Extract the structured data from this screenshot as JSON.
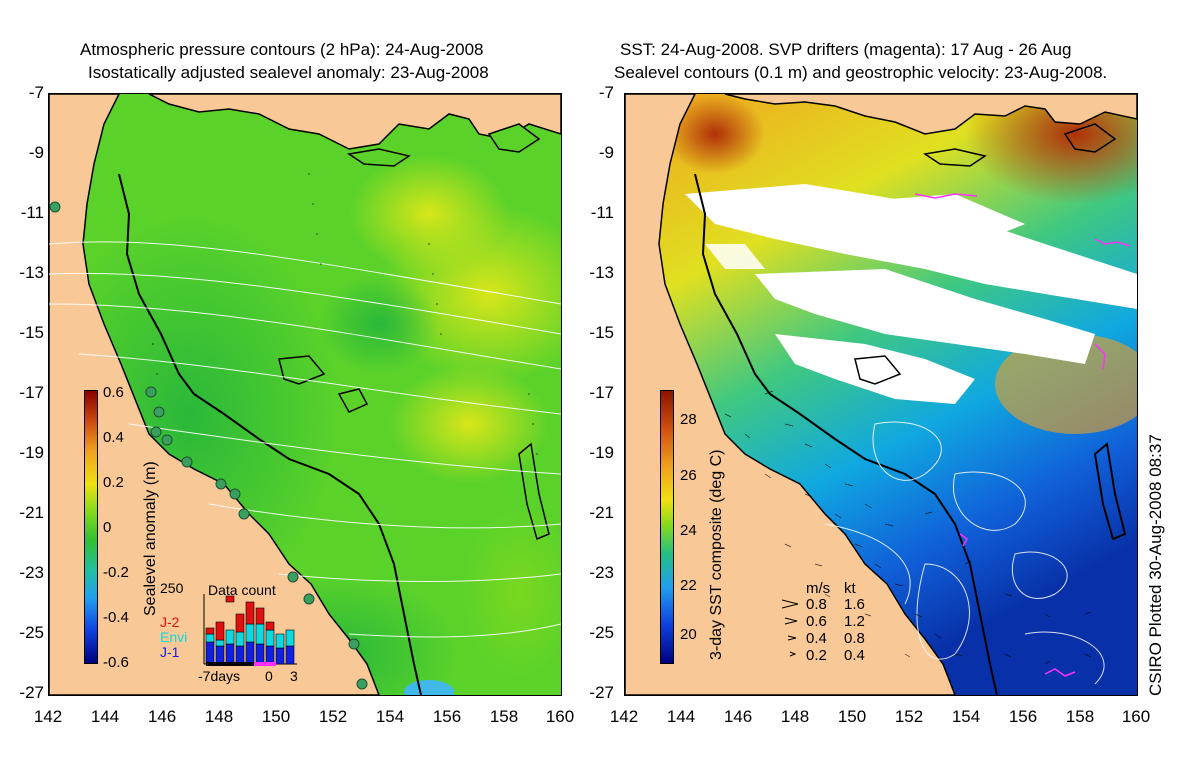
{
  "left_panel": {
    "title_line1": "Atmospheric pressure contours (2 hPa): 24-Aug-2008",
    "title_line2": "Isostatically adjusted sealevel anomaly: 23-Aug-2008",
    "colorbar": {
      "label": "Sealevel anomaly (m)",
      "ticks": [
        "0.6",
        "0.4",
        "0.2",
        "0",
        "-0.2",
        "-0.4",
        "-0.6"
      ]
    },
    "inset": {
      "title": "Data count",
      "ymax": "250",
      "series": [
        {
          "name": "J-2",
          "color": "#e01010"
        },
        {
          "name": "Envi",
          "color": "#10d8e0"
        },
        {
          "name": "J-1",
          "color": "#1020e0"
        }
      ],
      "xlabels": [
        "-7days",
        "0",
        "3"
      ]
    }
  },
  "right_panel": {
    "title_line1": "SST: 24-Aug-2008. SVP drifters (magenta): 17 Aug - 26 Aug",
    "title_line2": "Sealevel contours (0.1 m) and geostrophic velocity: 23-Aug-2008.",
    "colorbar": {
      "label": "3-day SST composite (deg C)",
      "ticks": [
        "28",
        "26",
        "24",
        "22",
        "20"
      ]
    },
    "velocity_key": {
      "header_ms": "m/s",
      "header_kt": "kt",
      "rows": [
        {
          "ms": "0.8",
          "kt": "1.6"
        },
        {
          "ms": "0.6",
          "kt": "1.2"
        },
        {
          "ms": "0.4",
          "kt": "0.8"
        },
        {
          "ms": "0.2",
          "kt": "0.4"
        }
      ]
    },
    "credit": "CSIRO Plotted 30-Aug-2008 08:37"
  },
  "axes": {
    "lat_ticks": [
      "-7",
      "-9",
      "-11",
      "-13",
      "-15",
      "-17",
      "-19",
      "-21",
      "-23",
      "-25",
      "-27"
    ],
    "lon_ticks": [
      "142",
      "144",
      "146",
      "148",
      "150",
      "152",
      "154",
      "156",
      "158",
      "160"
    ]
  },
  "colors": {
    "land": "#f8c896",
    "ocean_green": "#5ad22a",
    "coast": "#000000",
    "drifter": "#ff30ff"
  }
}
